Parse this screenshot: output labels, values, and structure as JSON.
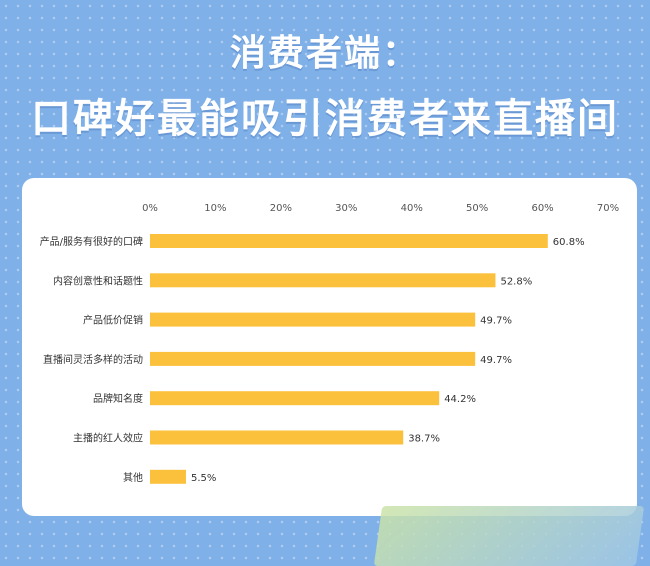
{
  "header": {
    "title_line1": "消费者端：",
    "title_line2": "口碑好最能吸引消费者来直播间"
  },
  "colors": {
    "background": "#7fb0e8",
    "bar": "#fbc13c",
    "card": "#ffffff"
  },
  "chart_data": {
    "type": "bar",
    "orientation": "horizontal",
    "categories": [
      "产品/服务有很好的口碑",
      "内容创意性和话题性",
      "产品低价促销",
      "直播间灵活多样的活动",
      "品牌知名度",
      "主播的红人效应",
      "其他"
    ],
    "values": [
      60.8,
      52.8,
      49.7,
      49.7,
      44.2,
      38.7,
      5.5
    ],
    "value_labels": [
      "60.8%",
      "52.8%",
      "49.7%",
      "49.7%",
      "44.2%",
      "38.7%",
      "5.5%"
    ],
    "xlim": [
      0,
      70
    ],
    "ticks": [
      "0%",
      "10%",
      "20%",
      "30%",
      "40%",
      "50%",
      "60%",
      "70%"
    ],
    "tick_values": [
      0,
      10,
      20,
      30,
      40,
      50,
      60,
      70
    ],
    "axis_position": "top",
    "grid": false,
    "legend": "none"
  }
}
